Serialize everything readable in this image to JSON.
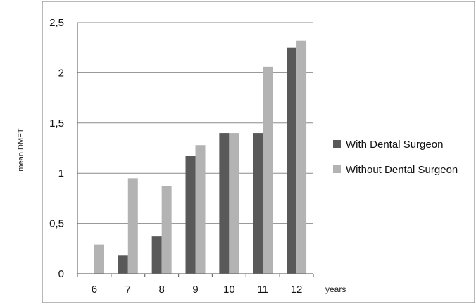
{
  "chart_data": {
    "type": "bar",
    "title": "",
    "xlabel": "years",
    "ylabel": "mean DMFT",
    "categories": [
      "6",
      "7",
      "8",
      "9",
      "10",
      "11",
      "12"
    ],
    "series": [
      {
        "name": "With Dental Surgeon",
        "color": "#595959",
        "values": [
          0,
          0.18,
          0.37,
          1.17,
          1.4,
          1.4,
          2.25
        ]
      },
      {
        "name": "Without Dental Surgeon",
        "color": "#b3b3b3",
        "values": [
          0.29,
          0.95,
          0.87,
          1.28,
          1.4,
          2.06,
          2.32
        ]
      }
    ],
    "ylim": [
      0,
      2.5
    ],
    "yticks": [
      0,
      0.5,
      1,
      1.5,
      2,
      2.5
    ],
    "ytick_labels": [
      "0",
      "0,5",
      "1",
      "1,5",
      "2",
      "2,5"
    ],
    "grid": true,
    "legend_position": "right"
  }
}
